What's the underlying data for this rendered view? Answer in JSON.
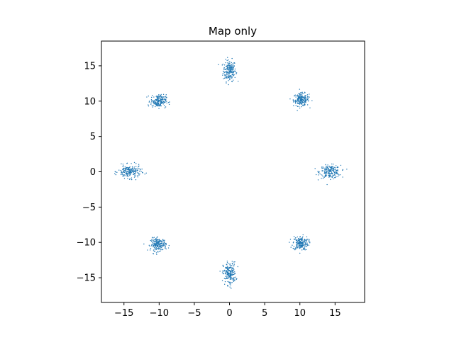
{
  "chart_data": {
    "type": "scatter",
    "title": "Map only",
    "xlabel": "",
    "ylabel": "",
    "xlim": [
      -18.2,
      19.2
    ],
    "ylim": [
      -18.5,
      18.5
    ],
    "xticks": [
      -15,
      -10,
      -5,
      0,
      5,
      10,
      15
    ],
    "yticks": [
      -15,
      -10,
      -5,
      0,
      5,
      10,
      15
    ],
    "xtick_labels": [
      "−15",
      "−10",
      "−5",
      "0",
      "5",
      "10",
      "15"
    ],
    "ytick_labels": [
      "−15",
      "−10",
      "−5",
      "0",
      "5",
      "10",
      "15"
    ],
    "grid": false,
    "legend": "none",
    "marker_color": "#1f77b4",
    "clusters": [
      {
        "center": [
          0.0,
          14.3
        ],
        "spread": [
          0.45,
          0.75
        ],
        "count": 200
      },
      {
        "center": [
          10.2,
          10.2
        ],
        "spread": [
          0.55,
          0.45
        ],
        "count": 200
      },
      {
        "center": [
          14.3,
          0.0
        ],
        "spread": [
          0.75,
          0.45
        ],
        "count": 200
      },
      {
        "center": [
          10.1,
          -10.1
        ],
        "spread": [
          0.55,
          0.5
        ],
        "count": 200
      },
      {
        "center": [
          0.0,
          -14.4
        ],
        "spread": [
          0.45,
          0.8
        ],
        "count": 200
      },
      {
        "center": [
          -10.1,
          -10.3
        ],
        "spread": [
          0.55,
          0.45
        ],
        "count": 200
      },
      {
        "center": [
          -14.2,
          0.0
        ],
        "spread": [
          0.8,
          0.45
        ],
        "count": 200
      },
      {
        "center": [
          -10.1,
          10.0
        ],
        "spread": [
          0.55,
          0.45
        ],
        "count": 200
      }
    ]
  }
}
